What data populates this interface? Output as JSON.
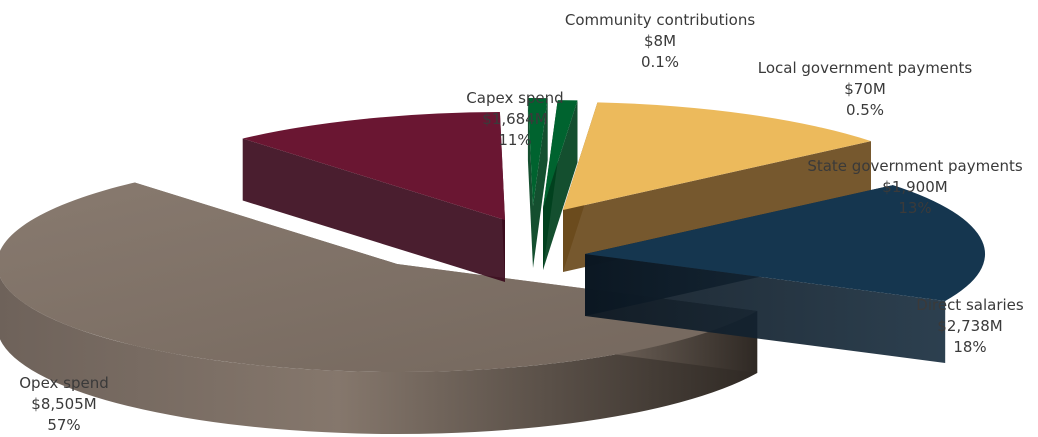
{
  "chart_data": {
    "type": "pie",
    "title": "",
    "style": "3d-exploded",
    "unit_prefix": "$",
    "unit_suffix": "M",
    "slices": [
      {
        "label": "Opex spend",
        "value_text": "$8,505M",
        "percent_text": "57%",
        "value": 8505,
        "percent": 57,
        "color": "#7e6f64"
      },
      {
        "label": "Capex spend",
        "value_text": "$1,684M",
        "percent_text": "11%",
        "value": 1684,
        "percent": 11,
        "color": "#6a1632"
      },
      {
        "label": "Community contributions",
        "value_text": "$8M",
        "percent_text": "0.1%",
        "value": 8,
        "percent": 0.1,
        "color": "#00632f"
      },
      {
        "label": "Local government payments",
        "value_text": "$70M",
        "percent_text": "0.5%",
        "value": 70,
        "percent": 0.5,
        "color": "#00632f"
      },
      {
        "label": "State government payments",
        "value_text": "$1,900M",
        "percent_text": "13%",
        "value": 1900,
        "percent": 13,
        "color": "#ecba5c"
      },
      {
        "label": "Direct salaries",
        "value_text": "$2,738M",
        "percent_text": "18%",
        "value": 2738,
        "percent": 18,
        "color": "#15364f"
      }
    ]
  }
}
